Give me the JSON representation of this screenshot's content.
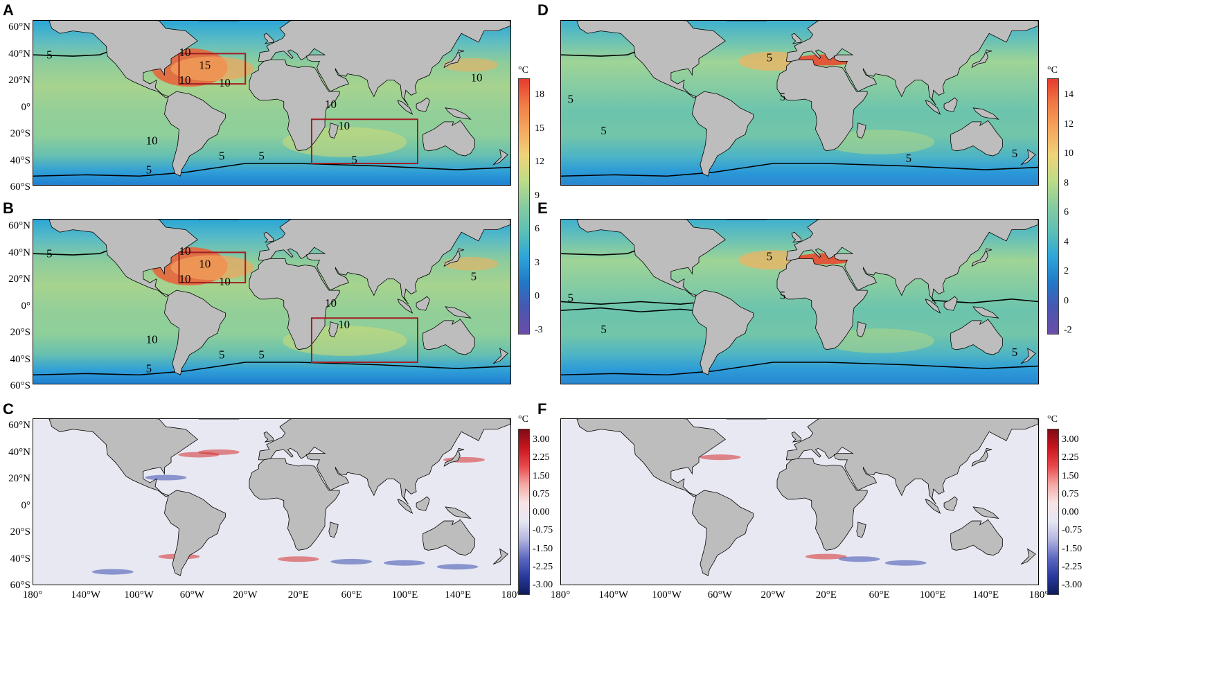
{
  "panels": [
    {
      "label": "A",
      "type": "temperature",
      "boxes": true
    },
    {
      "label": "B",
      "type": "temperature",
      "boxes": true
    },
    {
      "label": "C",
      "type": "difference",
      "boxes": false
    },
    {
      "label": "D",
      "type": "temperature",
      "boxes": false
    },
    {
      "label": "E",
      "type": "temperature",
      "boxes": false
    },
    {
      "label": "F",
      "type": "difference",
      "boxes": false
    }
  ],
  "lat_labels": [
    "60°N",
    "40°N",
    "20°N",
    "0°",
    "20°S",
    "40°S",
    "60°S"
  ],
  "lon_labels": [
    "180°",
    "140°W",
    "100°W",
    "60°W",
    "20°W",
    "20°E",
    "60°E",
    "100°E",
    "140°E",
    "180°"
  ],
  "contour_labels": {
    "A": [
      "5",
      "5",
      "10",
      "15",
      "10",
      "10",
      "10",
      "10",
      "10",
      "10",
      "5",
      "5",
      "5"
    ],
    "B": [
      "5",
      "5",
      "10",
      "10",
      "10",
      "10",
      "10",
      "10",
      "10",
      "5",
      "5",
      "5"
    ],
    "D": [
      "5",
      "5",
      "5",
      "5",
      "5",
      "5"
    ],
    "E": [
      "5",
      "5",
      "5",
      "5",
      "5"
    ]
  },
  "colorbars": {
    "left_temperature": {
      "unit": "°C",
      "ticks": [
        "18",
        "15",
        "12",
        "9",
        "6",
        "3",
        "0",
        "-3"
      ]
    },
    "right_temperature": {
      "unit": "°C",
      "ticks": [
        "14",
        "12",
        "10",
        "8",
        "6",
        "4",
        "2",
        "0",
        "-2"
      ]
    },
    "difference": {
      "unit": "°C",
      "ticks": [
        "3.00",
        "2.25",
        "1.50",
        "0.75",
        "0.00",
        "-0.75",
        "-1.50",
        "-2.25",
        "-3.00"
      ]
    }
  },
  "colors": {
    "land": "#bdbdbd",
    "ocean_mid": "#76c4a4",
    "box_outline": "#a31d22",
    "diff_background": "#e8e8f2"
  }
}
